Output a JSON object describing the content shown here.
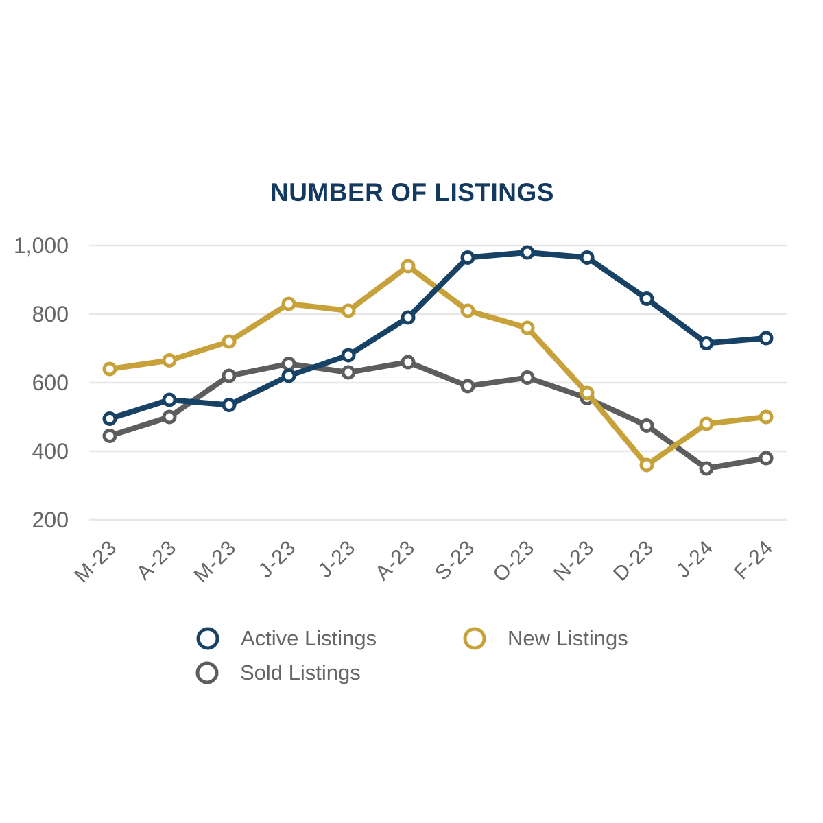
{
  "page": {
    "background": "#ffffff"
  },
  "chart_data": {
    "type": "line",
    "title": "NUMBER OF LISTINGS",
    "title_color": "#14395f",
    "categories": [
      "M-23",
      "A-23",
      "M-23",
      "J-23",
      "J-23",
      "A-23",
      "S-23",
      "O-23",
      "N-23",
      "D-23",
      "J-24",
      "F-24"
    ],
    "series": [
      {
        "name": "Active Listings",
        "color": "#174265",
        "values": [
          495,
          550,
          535,
          620,
          680,
          790,
          965,
          980,
          965,
          845,
          715,
          730
        ]
      },
      {
        "name": "New Listings",
        "color": "#c7a139",
        "values": [
          640,
          665,
          720,
          830,
          810,
          940,
          810,
          760,
          570,
          360,
          480,
          500
        ]
      },
      {
        "name": "Sold Listings",
        "color": "#5d5d5d",
        "values": [
          445,
          500,
          620,
          655,
          630,
          660,
          590,
          615,
          555,
          475,
          350,
          380
        ]
      }
    ],
    "ylim": [
      200,
      1000
    ],
    "yticks": [
      1000,
      800,
      600,
      400,
      200
    ],
    "ytick_labels": [
      "1,000",
      "800",
      "600",
      "400",
      "200"
    ],
    "xlabel": "",
    "ylabel": "",
    "grid": "horizontal",
    "grid_color": "#e7e7e7",
    "axis_text_color": "#666666",
    "legend_position": "bottom"
  }
}
